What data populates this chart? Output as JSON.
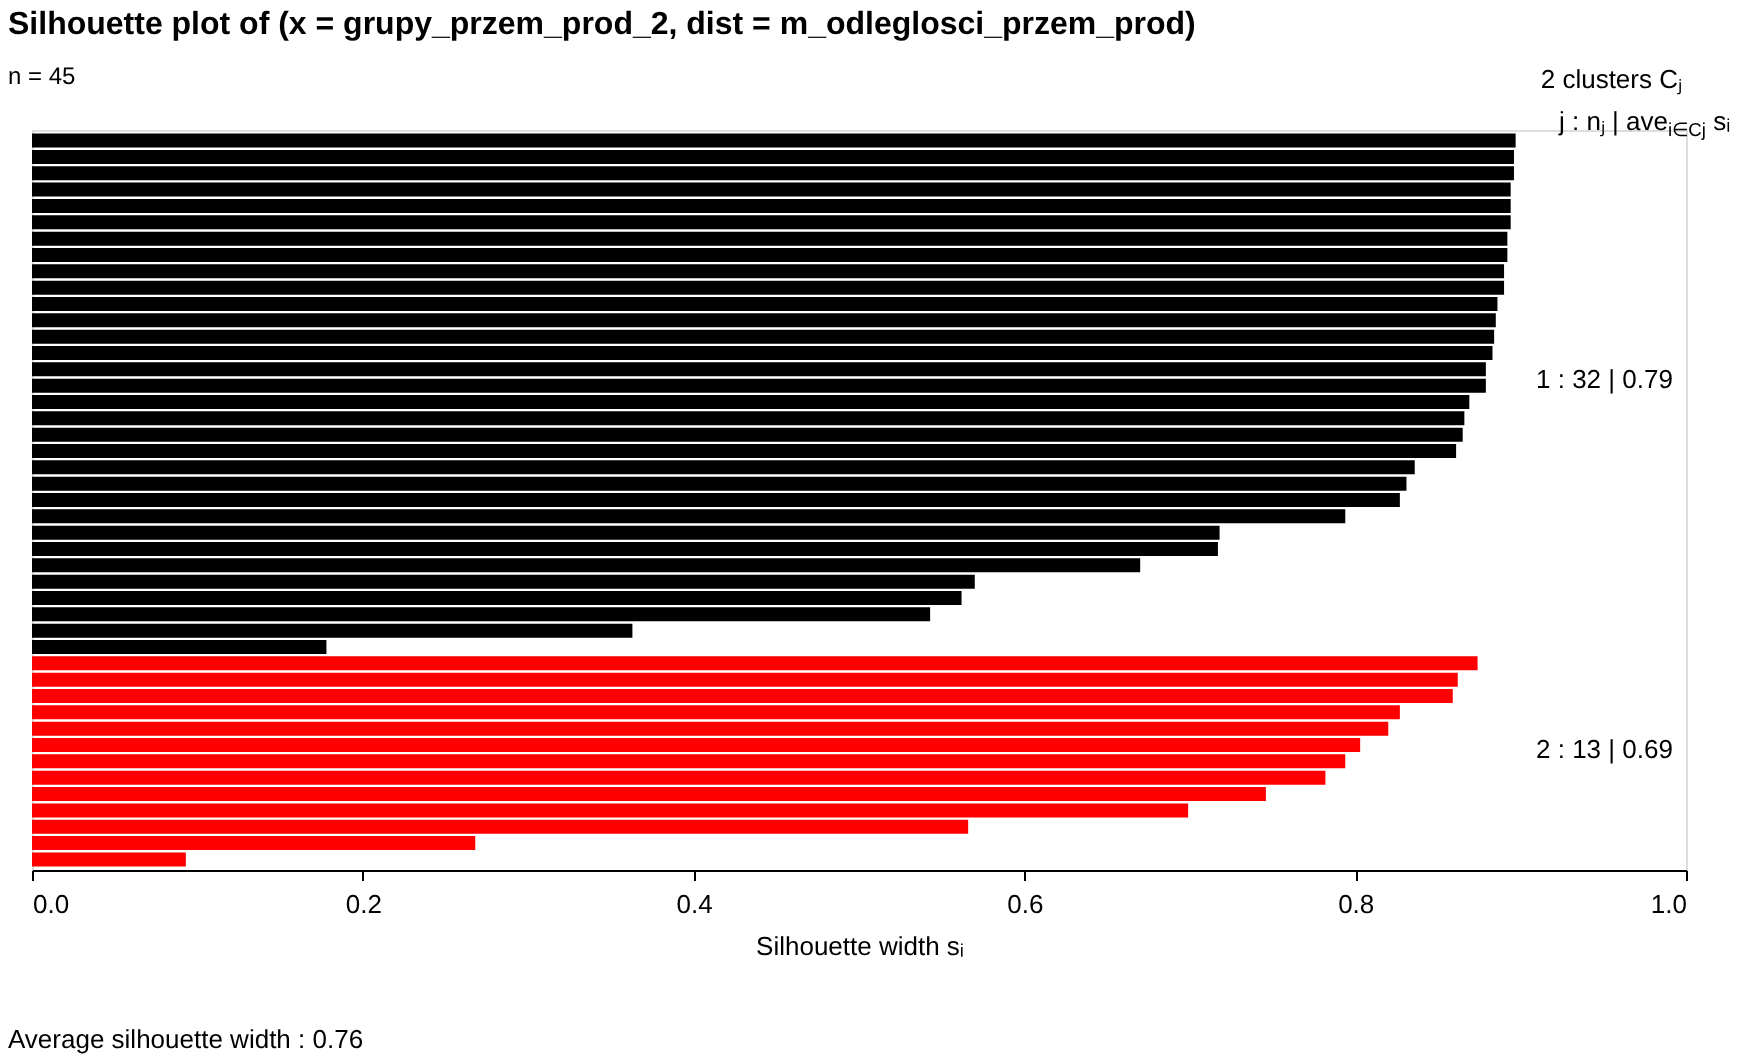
{
  "chart_data": {
    "type": "bar",
    "orientation": "horizontal",
    "title": "Silhouette plot of (x = grupy_przem_prod_2, dist = m_odleglosci_przem_prod)",
    "subtitle": "n = 45",
    "xlabel": "Silhouette width sᵢ",
    "categories": [
      null,
      null,
      null,
      null,
      null,
      null,
      null,
      null,
      null,
      null,
      null,
      null,
      null,
      null,
      null,
      null,
      null,
      null,
      null,
      null,
      null,
      null,
      null,
      null,
      null,
      null,
      null,
      null,
      null,
      null,
      null,
      null,
      null,
      null,
      null,
      null,
      null,
      null,
      null,
      null,
      null,
      null,
      null,
      null,
      null
    ],
    "values": [
      0.897,
      0.896,
      0.896,
      0.894,
      0.894,
      0.894,
      0.892,
      0.892,
      0.89,
      0.89,
      0.886,
      0.885,
      0.884,
      0.883,
      0.879,
      0.879,
      0.869,
      0.866,
      0.865,
      0.861,
      0.836,
      0.831,
      0.827,
      0.794,
      0.718,
      0.717,
      0.67,
      0.57,
      0.562,
      0.543,
      0.363,
      0.178,
      0.874,
      0.862,
      0.859,
      0.827,
      0.82,
      0.803,
      0.794,
      0.782,
      0.746,
      0.699,
      0.566,
      0.268,
      0.093
    ],
    "colors": [
      "#000000",
      "#000000",
      "#000000",
      "#000000",
      "#000000",
      "#000000",
      "#000000",
      "#000000",
      "#000000",
      "#000000",
      "#000000",
      "#000000",
      "#000000",
      "#000000",
      "#000000",
      "#000000",
      "#000000",
      "#000000",
      "#000000",
      "#000000",
      "#000000",
      "#000000",
      "#000000",
      "#000000",
      "#000000",
      "#000000",
      "#000000",
      "#000000",
      "#000000",
      "#000000",
      "#000000",
      "#000000",
      "#ff0000",
      "#ff0000",
      "#ff0000",
      "#ff0000",
      "#ff0000",
      "#ff0000",
      "#ff0000",
      "#ff0000",
      "#ff0000",
      "#ff0000",
      "#ff0000",
      "#ff0000",
      "#ff0000"
    ],
    "xlim": [
      0,
      1
    ],
    "xticks": [
      {
        "value": 0,
        "label": "0.0"
      },
      0.2,
      0.4,
      0.6,
      0.8,
      {
        "value": 1,
        "label": "1.0"
      }
    ],
    "tick_labels": "x",
    "grid": false,
    "annotations": [
      "2  clusters  Cⱼ",
      "j :  nⱼ | ave$_{i∈Cj}$ sᵢ",
      "1 :   32  |  0.79",
      "2 :   13  |  0.69",
      "Average silhouette width :  0.76"
    ]
  }
}
